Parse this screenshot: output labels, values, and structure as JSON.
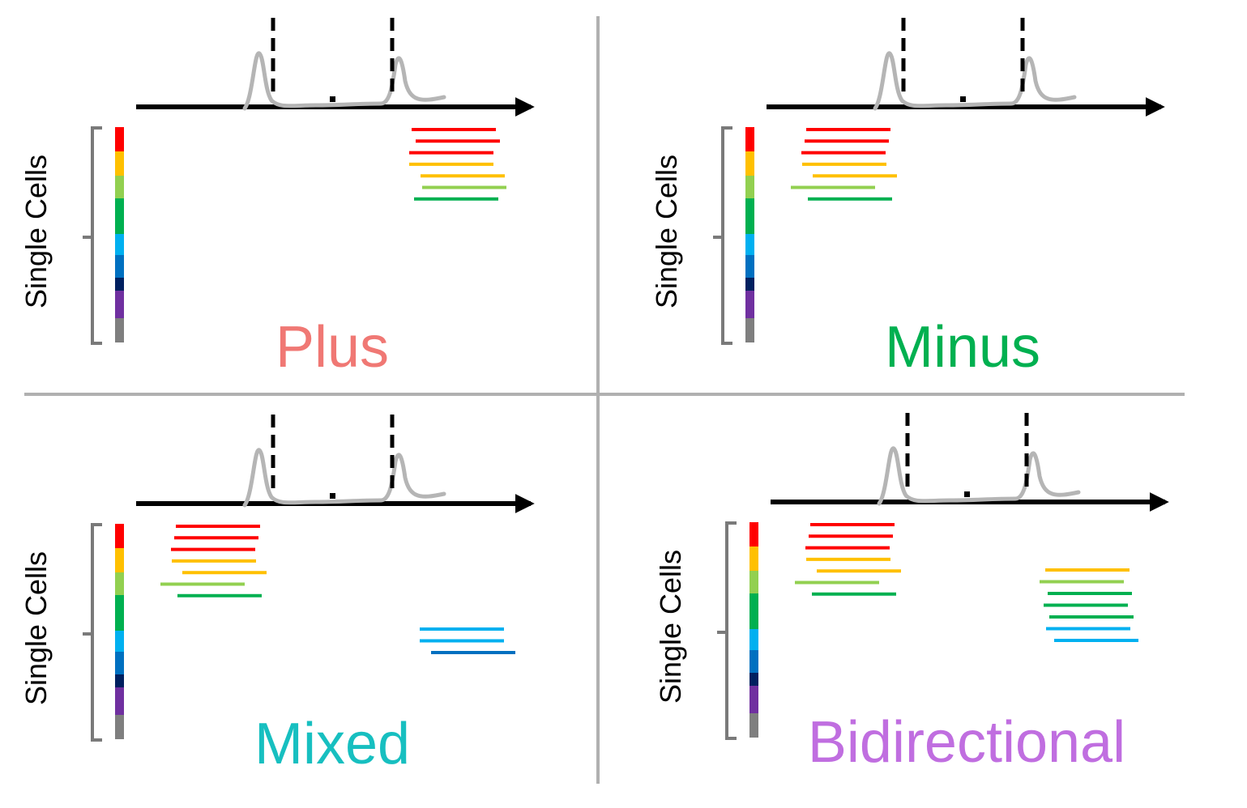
{
  "side_label": "Single Cells",
  "colors": {
    "divider": "#b0b0b0",
    "axis": "#000000",
    "trace": "#b5b5b5",
    "bracket": "#7a7a7a",
    "colorbar": [
      "#ff0000",
      "#ffc000",
      "#92d050",
      "#00b050",
      "#00b0f0",
      "#0070c0",
      "#002060",
      "#7030a0",
      "#7f7f7f"
    ]
  },
  "panels": [
    {
      "title": "Plus",
      "title_color": "#f07874",
      "bar_groups": [
        {
          "side": "right",
          "colors": [
            "#ff0000",
            "#ff0000",
            "#ff0000",
            "#ffc000",
            "#ffc000",
            "#92d050",
            "#00b050"
          ]
        }
      ]
    },
    {
      "title": "Minus",
      "title_color": "#00b050",
      "bar_groups": [
        {
          "side": "left",
          "colors": [
            "#ff0000",
            "#ff0000",
            "#ff0000",
            "#ffc000",
            "#ffc000",
            "#92d050",
            "#00b050"
          ]
        }
      ]
    },
    {
      "title": "Mixed",
      "title_color": "#17bfc0",
      "bar_groups": [
        {
          "side": "left",
          "colors": [
            "#ff0000",
            "#ff0000",
            "#ff0000",
            "#ffc000",
            "#ffc000",
            "#92d050",
            "#00b050"
          ]
        },
        {
          "side": "right",
          "colors": [
            "#00b0f0",
            "#00b0f0",
            "#0070c0"
          ]
        }
      ]
    },
    {
      "title": "Bidirectional",
      "title_color": "#c06ee0",
      "bar_groups": [
        {
          "side": "left",
          "colors": [
            "#ff0000",
            "#ff0000",
            "#ff0000",
            "#ffc000",
            "#ffc000",
            "#92d050",
            "#00b050"
          ]
        },
        {
          "side": "right",
          "colors": [
            "#ffc000",
            "#92d050",
            "#00b050",
            "#00b050",
            "#00b050",
            "#00b0f0",
            "#00b0f0"
          ]
        }
      ]
    }
  ]
}
